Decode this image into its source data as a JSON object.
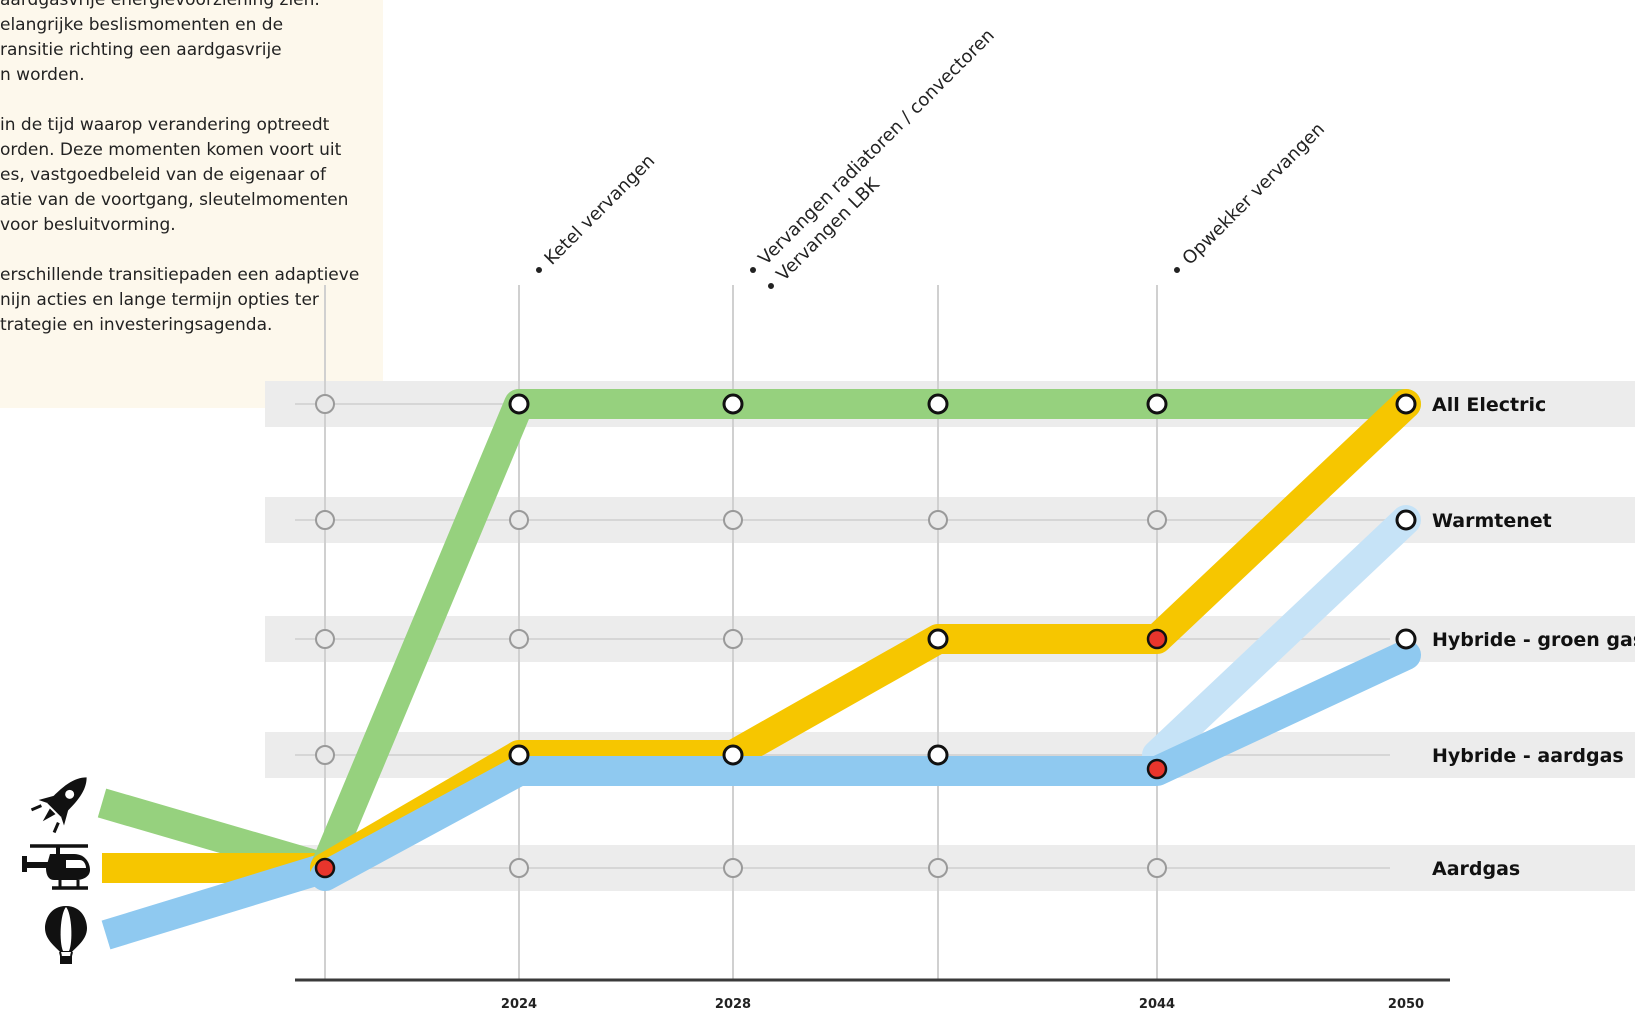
{
  "intro": {
    "lines": [
      "aardgasvrije energievoorziening zien.",
      "elangrijke beslismomenten en de",
      "ransitie richting een aardgasvrije",
      "n worden.",
      "",
      "in de tijd waarop verandering optreedt",
      "orden. Deze momenten komen voort uit",
      "es, vastgoedbeleid van de eigenaar of",
      "atie van de voortgang, sleutelmomenten",
      "voor besluitvorming.",
      "",
      "erschillende transitiepaden een adaptieve",
      "nijn acties en lange termijn opties ter",
      "trategie en investeringsagenda."
    ]
  },
  "chart_data": {
    "type": "diagram",
    "rows": [
      "All Electric",
      "Warmtenet",
      "Hybride - groen gas",
      "Hybride - aardgas",
      "Aardgas"
    ],
    "x_labels": [
      {
        "index": 1,
        "label": "2024"
      },
      {
        "index": 2,
        "label": "2028"
      },
      {
        "index": 4,
        "label": "2044"
      },
      {
        "index": 5,
        "label": "2050"
      }
    ],
    "milestones": [
      {
        "index": 1,
        "lines": [
          "Ketel vervangen"
        ]
      },
      {
        "index": 2,
        "lines": [
          "Vervangen radiatoren / convectoren",
          "Vervangen LBK"
        ]
      },
      {
        "index": 4,
        "lines": [
          "Opwekker vervangen"
        ]
      }
    ],
    "paths": [
      {
        "color": "#96d17e",
        "icon": "rocket-icon",
        "points": [
          [
            0,
            4
          ],
          [
            1,
            0
          ],
          [
            2,
            0
          ],
          [
            3,
            0
          ],
          [
            4,
            0
          ],
          [
            5,
            0
          ]
        ]
      },
      {
        "color": "#f6c600",
        "icon": "helicopter-icon",
        "points": [
          [
            0,
            4
          ],
          [
            1,
            3
          ],
          [
            2,
            3
          ],
          [
            3,
            2
          ],
          [
            4,
            2
          ],
          [
            5,
            0
          ]
        ]
      },
      {
        "color": "#c6e3f7",
        "icon": "",
        "points": [
          [
            4,
            3
          ],
          [
            5,
            1
          ]
        ]
      },
      {
        "color": "#8fc9f0",
        "icon": "hot-air-balloon-icon",
        "points": [
          [
            0,
            4
          ],
          [
            1,
            3
          ],
          [
            2,
            3
          ],
          [
            3,
            3
          ],
          [
            4,
            3
          ],
          [
            5,
            2
          ]
        ]
      }
    ],
    "decision_points": [
      [
        0,
        4
      ],
      [
        4,
        2
      ],
      [
        4,
        3
      ]
    ]
  }
}
